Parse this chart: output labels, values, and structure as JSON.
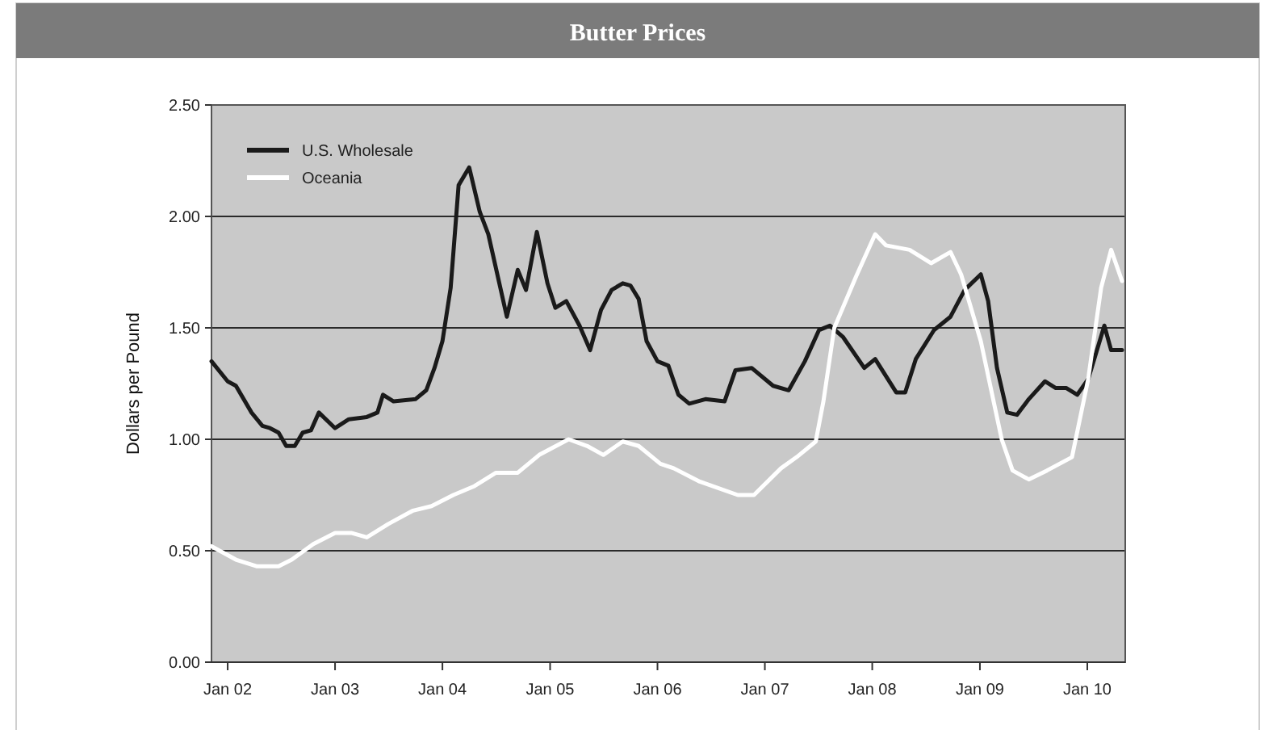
{
  "chart_data": {
    "type": "line",
    "title": "Butter Prices",
    "ylabel": "Dollars per Pound",
    "xlim": [
      "2001-11-07",
      "2010-05-10"
    ],
    "xticks": [
      {
        "value": "2002-01-01",
        "label": "Jan 02"
      },
      {
        "value": "2003-01-01",
        "label": "Jan 03"
      },
      {
        "value": "2004-01-01",
        "label": "Jan 04"
      },
      {
        "value": "2005-01-01",
        "label": "Jan 05"
      },
      {
        "value": "2006-01-01",
        "label": "Jan 06"
      },
      {
        "value": "2007-01-01",
        "label": "Jan 07"
      },
      {
        "value": "2008-01-01",
        "label": "Jan 08"
      },
      {
        "value": "2009-01-01",
        "label": "Jan 09"
      },
      {
        "value": "2010-01-01",
        "label": "Jan 10"
      }
    ],
    "ylim": [
      0,
      2.5
    ],
    "yticks": [
      {
        "value": 0,
        "label": "0.00"
      },
      {
        "value": 0.5,
        "label": "0.50"
      },
      {
        "value": 1,
        "label": "1.00"
      },
      {
        "value": 1.5,
        "label": "1.50"
      },
      {
        "value": 2,
        "label": "2.00"
      },
      {
        "value": 2.5,
        "label": "2.50"
      }
    ],
    "grid": "y",
    "legend": "top left",
    "marker": "none",
    "line_style": "solid",
    "series": [
      {
        "name": "U.S. Wholesale",
        "color": "#1a1a1a",
        "x": [
          "2001-11-07",
          "2002-01-01",
          "2002-01-29",
          "2002-03-23",
          "2002-04-29",
          "2002-05-25",
          "2002-06-23",
          "2002-07-19",
          "2002-08-17",
          "2002-09-13",
          "2002-10-11",
          "2002-11-07",
          "2003-01-01",
          "2003-02-17",
          "2003-04-19",
          "2003-05-25",
          "2003-06-13",
          "2003-07-19",
          "2003-10-01",
          "2003-11-07",
          "2003-12-05",
          "2004-01-01",
          "2004-01-29",
          "2004-02-25",
          "2004-04-01",
          "2004-05-07",
          "2004-06-05",
          "2004-08-07",
          "2004-09-13",
          "2004-10-11",
          "2004-11-17",
          "2004-12-23",
          "2005-01-19",
          "2005-02-25",
          "2005-04-11",
          "2005-05-17",
          "2005-06-23",
          "2005-07-29",
          "2005-09-05",
          "2005-10-01",
          "2005-10-29",
          "2005-11-25",
          "2006-01-01",
          "2006-02-07",
          "2006-03-13",
          "2006-04-19",
          "2006-06-13",
          "2006-08-17",
          "2006-09-23",
          "2006-11-17",
          "2007-01-29",
          "2007-03-23",
          "2007-05-17",
          "2007-07-04",
          "2007-08-10",
          "2007-09-23",
          "2007-12-05",
          "2008-01-11",
          "2008-03-23",
          "2008-04-22",
          "2008-05-28",
          "2008-07-29",
          "2008-09-23",
          "2008-11-10",
          "2009-01-04",
          "2009-01-29",
          "2009-02-28",
          "2009-04-04",
          "2009-05-07",
          "2009-06-16",
          "2009-08-10",
          "2009-09-16",
          "2009-10-22",
          "2009-11-28",
          "2010-01-04",
          "2010-02-28",
          "2010-03-23",
          "2010-04-29"
        ],
        "values": [
          1.35,
          1.26,
          1.24,
          1.12,
          1.06,
          1.05,
          1.03,
          0.97,
          0.97,
          1.03,
          1.04,
          1.12,
          1.05,
          1.09,
          1.1,
          1.12,
          1.2,
          1.17,
          1.18,
          1.22,
          1.32,
          1.44,
          1.68,
          2.14,
          2.22,
          2.02,
          1.92,
          1.55,
          1.76,
          1.67,
          1.93,
          1.7,
          1.59,
          1.62,
          1.51,
          1.4,
          1.58,
          1.67,
          1.7,
          1.69,
          1.63,
          1.44,
          1.35,
          1.33,
          1.2,
          1.16,
          1.18,
          1.17,
          1.31,
          1.32,
          1.24,
          1.22,
          1.35,
          1.49,
          1.51,
          1.46,
          1.32,
          1.36,
          1.21,
          1.21,
          1.36,
          1.49,
          1.55,
          1.67,
          1.74,
          1.62,
          1.32,
          1.12,
          1.11,
          1.18,
          1.26,
          1.23,
          1.23,
          1.2,
          1.27,
          1.51,
          1.4,
          1.4
        ]
      },
      {
        "name": "Oceania",
        "color": "#ffffff",
        "x": [
          "2001-11-07",
          "2002-01-29",
          "2002-04-11",
          "2002-06-23",
          "2002-08-07",
          "2002-10-19",
          "2003-01-01",
          "2003-02-25",
          "2003-04-19",
          "2003-07-01",
          "2003-09-23",
          "2003-11-25",
          "2004-02-07",
          "2004-04-19",
          "2004-07-01",
          "2004-09-13",
          "2004-11-25",
          "2005-03-05",
          "2005-05-07",
          "2005-07-01",
          "2005-09-05",
          "2005-10-29",
          "2006-01-11",
          "2006-02-25",
          "2006-05-25",
          "2006-10-01",
          "2006-11-25",
          "2007-02-25",
          "2007-04-19",
          "2007-06-23",
          "2007-07-19",
          "2007-08-25",
          "2007-11-07",
          "2008-01-11",
          "2008-02-17",
          "2008-05-07",
          "2008-07-19",
          "2008-09-23",
          "2008-10-29",
          "2009-01-04",
          "2009-03-16",
          "2009-04-22",
          "2009-06-16",
          "2009-08-17",
          "2009-11-10",
          "2010-01-04",
          "2010-02-17",
          "2010-03-23",
          "2010-04-29"
        ],
        "values": [
          0.52,
          0.46,
          0.43,
          0.43,
          0.46,
          0.53,
          0.58,
          0.58,
          0.56,
          0.62,
          0.68,
          0.7,
          0.75,
          0.79,
          0.85,
          0.85,
          0.93,
          1.0,
          0.97,
          0.93,
          0.99,
          0.97,
          0.89,
          0.87,
          0.81,
          0.75,
          0.75,
          0.87,
          0.92,
          0.99,
          1.17,
          1.5,
          1.73,
          1.92,
          1.87,
          1.85,
          1.79,
          1.84,
          1.74,
          1.44,
          1.0,
          0.86,
          0.82,
          0.86,
          0.92,
          1.27,
          1.68,
          1.85,
          1.71
        ]
      }
    ]
  }
}
